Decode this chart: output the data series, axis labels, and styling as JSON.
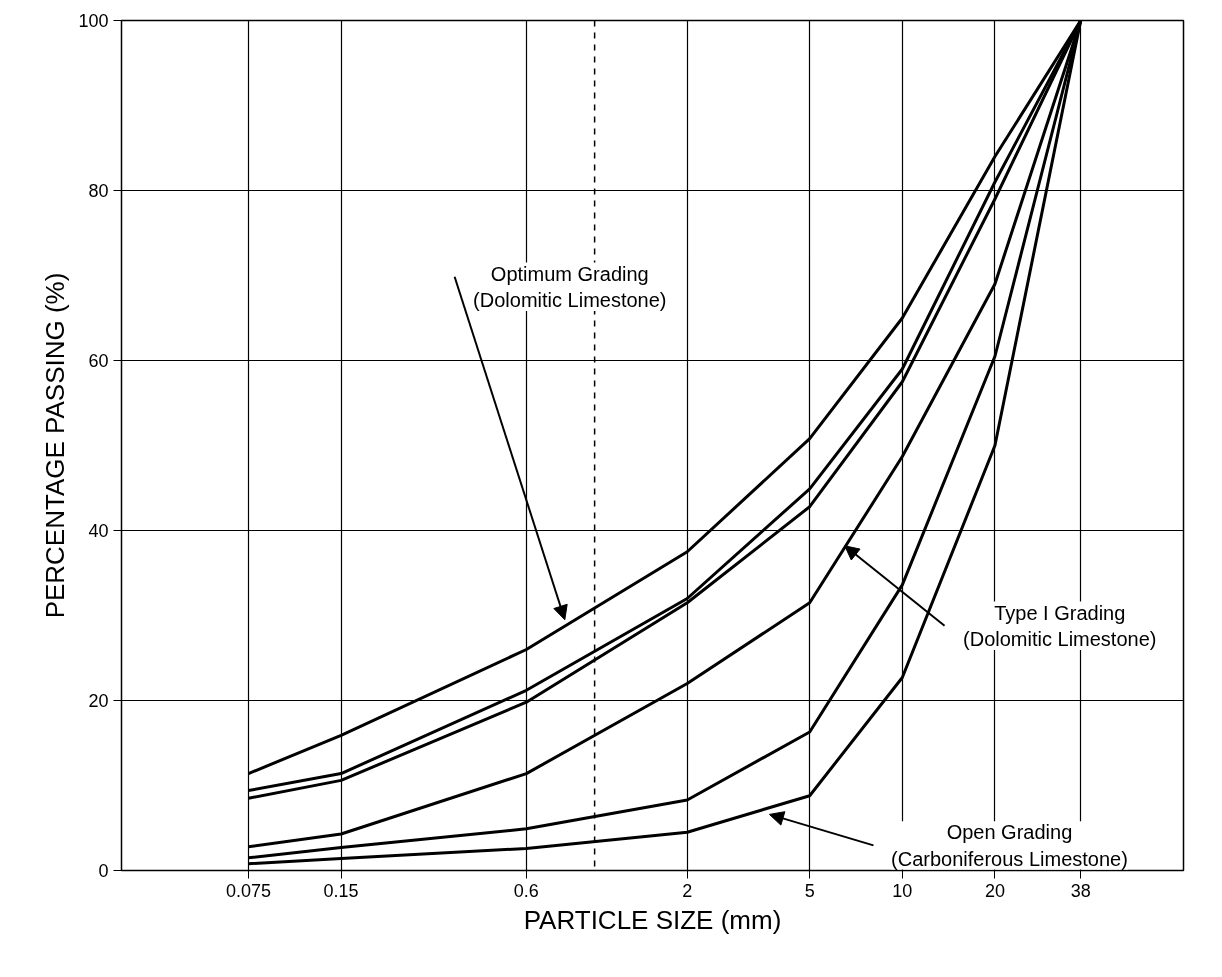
{
  "chart_data": {
    "type": "line",
    "xlabel": "PARTICLE SIZE (mm)",
    "ylabel": "PERCENTAGE PASSING (%)",
    "x": [
      0.075,
      0.15,
      0.6,
      2,
      5,
      10,
      20,
      38
    ],
    "series": [
      {
        "color": "#000000",
        "values": [
          11.4,
          15.9,
          26,
          37.5,
          50.8,
          65,
          84,
          100
        ]
      },
      {
        "color": "#000000",
        "values": [
          9.4,
          11.4,
          21.2,
          32,
          44.9,
          59,
          81,
          100
        ]
      },
      {
        "color": "#000000",
        "values": [
          8.5,
          10.6,
          19.8,
          31.5,
          42.8,
          57.5,
          79,
          100
        ]
      },
      {
        "color": "#000000",
        "values": [
          2.8,
          4.3,
          11.4,
          22,
          31.5,
          48.7,
          69,
          100
        ]
      },
      {
        "color": "#000000",
        "values": [
          1.5,
          2.7,
          4.9,
          8.3,
          16.3,
          33.6,
          60.5,
          100
        ]
      },
      {
        "color": "#000000",
        "values": [
          0.8,
          1.4,
          2.6,
          4.5,
          8.8,
          22.7,
          50,
          100
        ]
      }
    ],
    "log": "x",
    "xlim": [
      0.029,
      82
    ],
    "xticks": [
      0.075,
      0.15,
      0.6,
      2,
      5,
      10,
      20,
      38
    ],
    "ylim": [
      0,
      100
    ],
    "yticks": [
      0,
      20,
      40,
      60,
      80,
      100
    ],
    "grid": true,
    "marker": "none",
    "line_style": "solid",
    "ref_lines": [
      {
        "axis": "x",
        "value": 1,
        "line_style": "dashed"
      }
    ],
    "annotations": [
      {
        "text": "Optimum Grading\n(Dolomitic Limestone)",
        "x": 0.8,
        "y": 29.5
      },
      {
        "text": "Type I Grading\n(Dolomitic Limestone)",
        "x": 6.5,
        "y": 38.2
      },
      {
        "text": "Open Grading\n(Carboniferous Limestone)",
        "x": 3.7,
        "y": 6.6
      }
    ]
  }
}
